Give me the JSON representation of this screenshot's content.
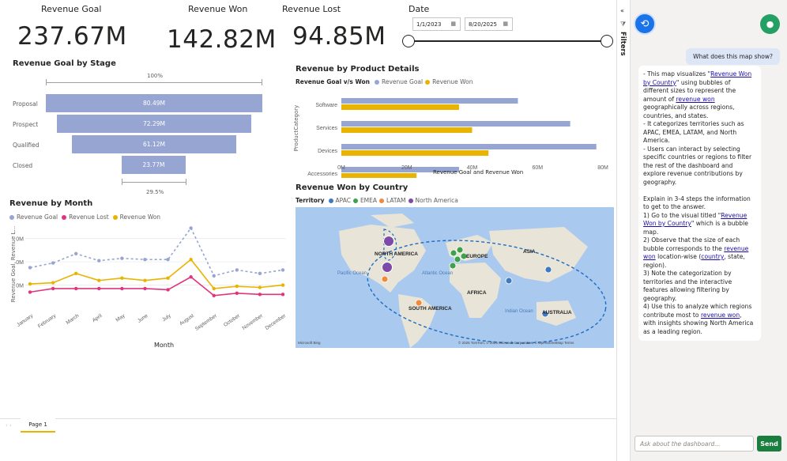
{
  "kpis": [
    {
      "title": "Revenue Goal",
      "value": "237.67M"
    },
    {
      "title": "Revenue Won",
      "value": "142.82M"
    },
    {
      "title": "Revenue Lost",
      "value": "94.85M"
    }
  ],
  "date_filter": {
    "title": "Date",
    "start": "1/1/2023",
    "end": "8/20/2025"
  },
  "funnel": {
    "title": "Revenue Goal by Stage",
    "top_pct": "100%",
    "bottom_pct": "29.5%",
    "stages": [
      {
        "label": "Proposal",
        "value_label": "80.49M",
        "value": 80.49
      },
      {
        "label": "Prospect",
        "value_label": "72.29M",
        "value": 72.29
      },
      {
        "label": "Qualified",
        "value_label": "61.12M",
        "value": 61.12
      },
      {
        "label": "Closed",
        "value_label": "23.77M",
        "value": 23.77
      }
    ]
  },
  "product_chart": {
    "title": "Revenue by Product Details",
    "legend_title": "Revenue Goal v/s Won",
    "legend": [
      "Revenue Goal",
      "Revenue Won"
    ],
    "ylabel": "ProductCategory",
    "xlabel": "Revenue Goal and Revenue Won",
    "xticks": [
      "0M",
      "20M",
      "40M",
      "60M",
      "80M"
    ]
  },
  "month_chart": {
    "title": "Revenue by Month",
    "legend": [
      "Revenue Goal",
      "Revenue Lost",
      "Revenue Won"
    ],
    "ylabel": "Revenue Goal, Revenue L...",
    "xlabel": "Month",
    "yticks": [
      "30M",
      "20M",
      "10M"
    ]
  },
  "map": {
    "title": "Revenue Won by Country",
    "legend_title": "Territory",
    "legend": [
      {
        "name": "APAC",
        "color": "#3f79c0"
      },
      {
        "name": "EMEA",
        "color": "#3fa14a"
      },
      {
        "name": "LATAM",
        "color": "#f28a3c"
      },
      {
        "name": "North America",
        "color": "#7d4aa7"
      }
    ],
    "labels": {
      "north_america": "NORTH AMERICA",
      "europe": "EUROPE",
      "asia": "ASIA",
      "africa": "AFRICA",
      "south_america": "SOUTH AMERICA",
      "australia": "AUSTRALIA",
      "pacific": "Pacific Ocean",
      "atlantic": "Atlantic Ocean",
      "indian": "Indian Ocean"
    },
    "attribution": "© 2025 TomTom, © 2025 Microsoft Corporation, © OpenStreetMap  Terms",
    "bing": "Microsoft Bing"
  },
  "chart_data": [
    {
      "type": "bar",
      "title": "Revenue by Product Details",
      "categories": [
        "Software",
        "Services",
        "Devices",
        "Accessories"
      ],
      "series": [
        {
          "name": "Revenue Goal",
          "values": [
            54,
            70,
            78,
            36
          ]
        },
        {
          "name": "Revenue Won",
          "values": [
            36,
            40,
            45,
            23
          ]
        }
      ],
      "xlabel": "Revenue Goal and Revenue Won",
      "ylabel": "ProductCategory",
      "xlim": [
        0,
        80
      ]
    },
    {
      "type": "line",
      "title": "Revenue by Month",
      "categories": [
        "January",
        "February",
        "March",
        "April",
        "May",
        "June",
        "July",
        "August",
        "September",
        "October",
        "November",
        "December"
      ],
      "series": [
        {
          "name": "Revenue Goal",
          "values": [
            17.5,
            19.5,
            23.5,
            20.5,
            21.5,
            21,
            21,
            34.5,
            14,
            16.5,
            15,
            16.5
          ]
        },
        {
          "name": "Revenue Lost",
          "values": [
            7,
            8.5,
            8.5,
            8.5,
            8.5,
            8.5,
            8,
            13.5,
            5.5,
            6.5,
            6,
            6
          ]
        },
        {
          "name": "Revenue Won",
          "values": [
            10.5,
            11,
            15,
            12,
            13,
            12,
            13,
            21,
            8.5,
            9.5,
            9,
            10
          ]
        }
      ],
      "xlabel": "Month",
      "ylabel": "Revenue Goal, Revenue L...",
      "ylim": [
        0,
        36
      ]
    }
  ],
  "filters_label": "Filters",
  "chat": {
    "user_msg": "What does this map show?",
    "reply": [
      [
        "- This map visualizes \"",
        {
          "a": "Revenue Won by Country"
        },
        "\" using bubbles of different sizes to represent the amount of ",
        {
          "a": "revenue won"
        },
        " geographically across regions, countries, and states."
      ],
      [
        "- It categorizes territories such as APAC, EMEA, LATAM, and North America."
      ],
      [
        "- Users can interact by selecting specific countries or regions to filter the rest of the dashboard and explore revenue contributions by geography."
      ],
      [
        ""
      ],
      [
        "Explain in 3-4 steps the information to get to the answer."
      ],
      [
        "1) Go to the visual titled \"",
        {
          "a": "Revenue Won by Country"
        },
        "\" which is a bubble map."
      ],
      [
        "2) Observe that the size of each bubble corresponds to the ",
        {
          "a": "revenue won"
        },
        " location-wise (",
        {
          "a": "country"
        },
        ", state, region)."
      ],
      [
        "3) Note the categorization by territories and the interactive features allowing filtering by geography."
      ],
      [
        "4) Use this to analyze which regions contribute most to ",
        {
          "a": "revenue won"
        },
        ", with insights showing North America as a leading region."
      ]
    ],
    "input_placeholder": "Ask about the dashboard...",
    "send_label": "Send"
  },
  "page_tab": "Page 1",
  "colors": {
    "goal": "#97a5d3",
    "won": "#e8b400",
    "lost": "#e0357e",
    "accent": "#1a73e8",
    "mic": "#25a065"
  }
}
